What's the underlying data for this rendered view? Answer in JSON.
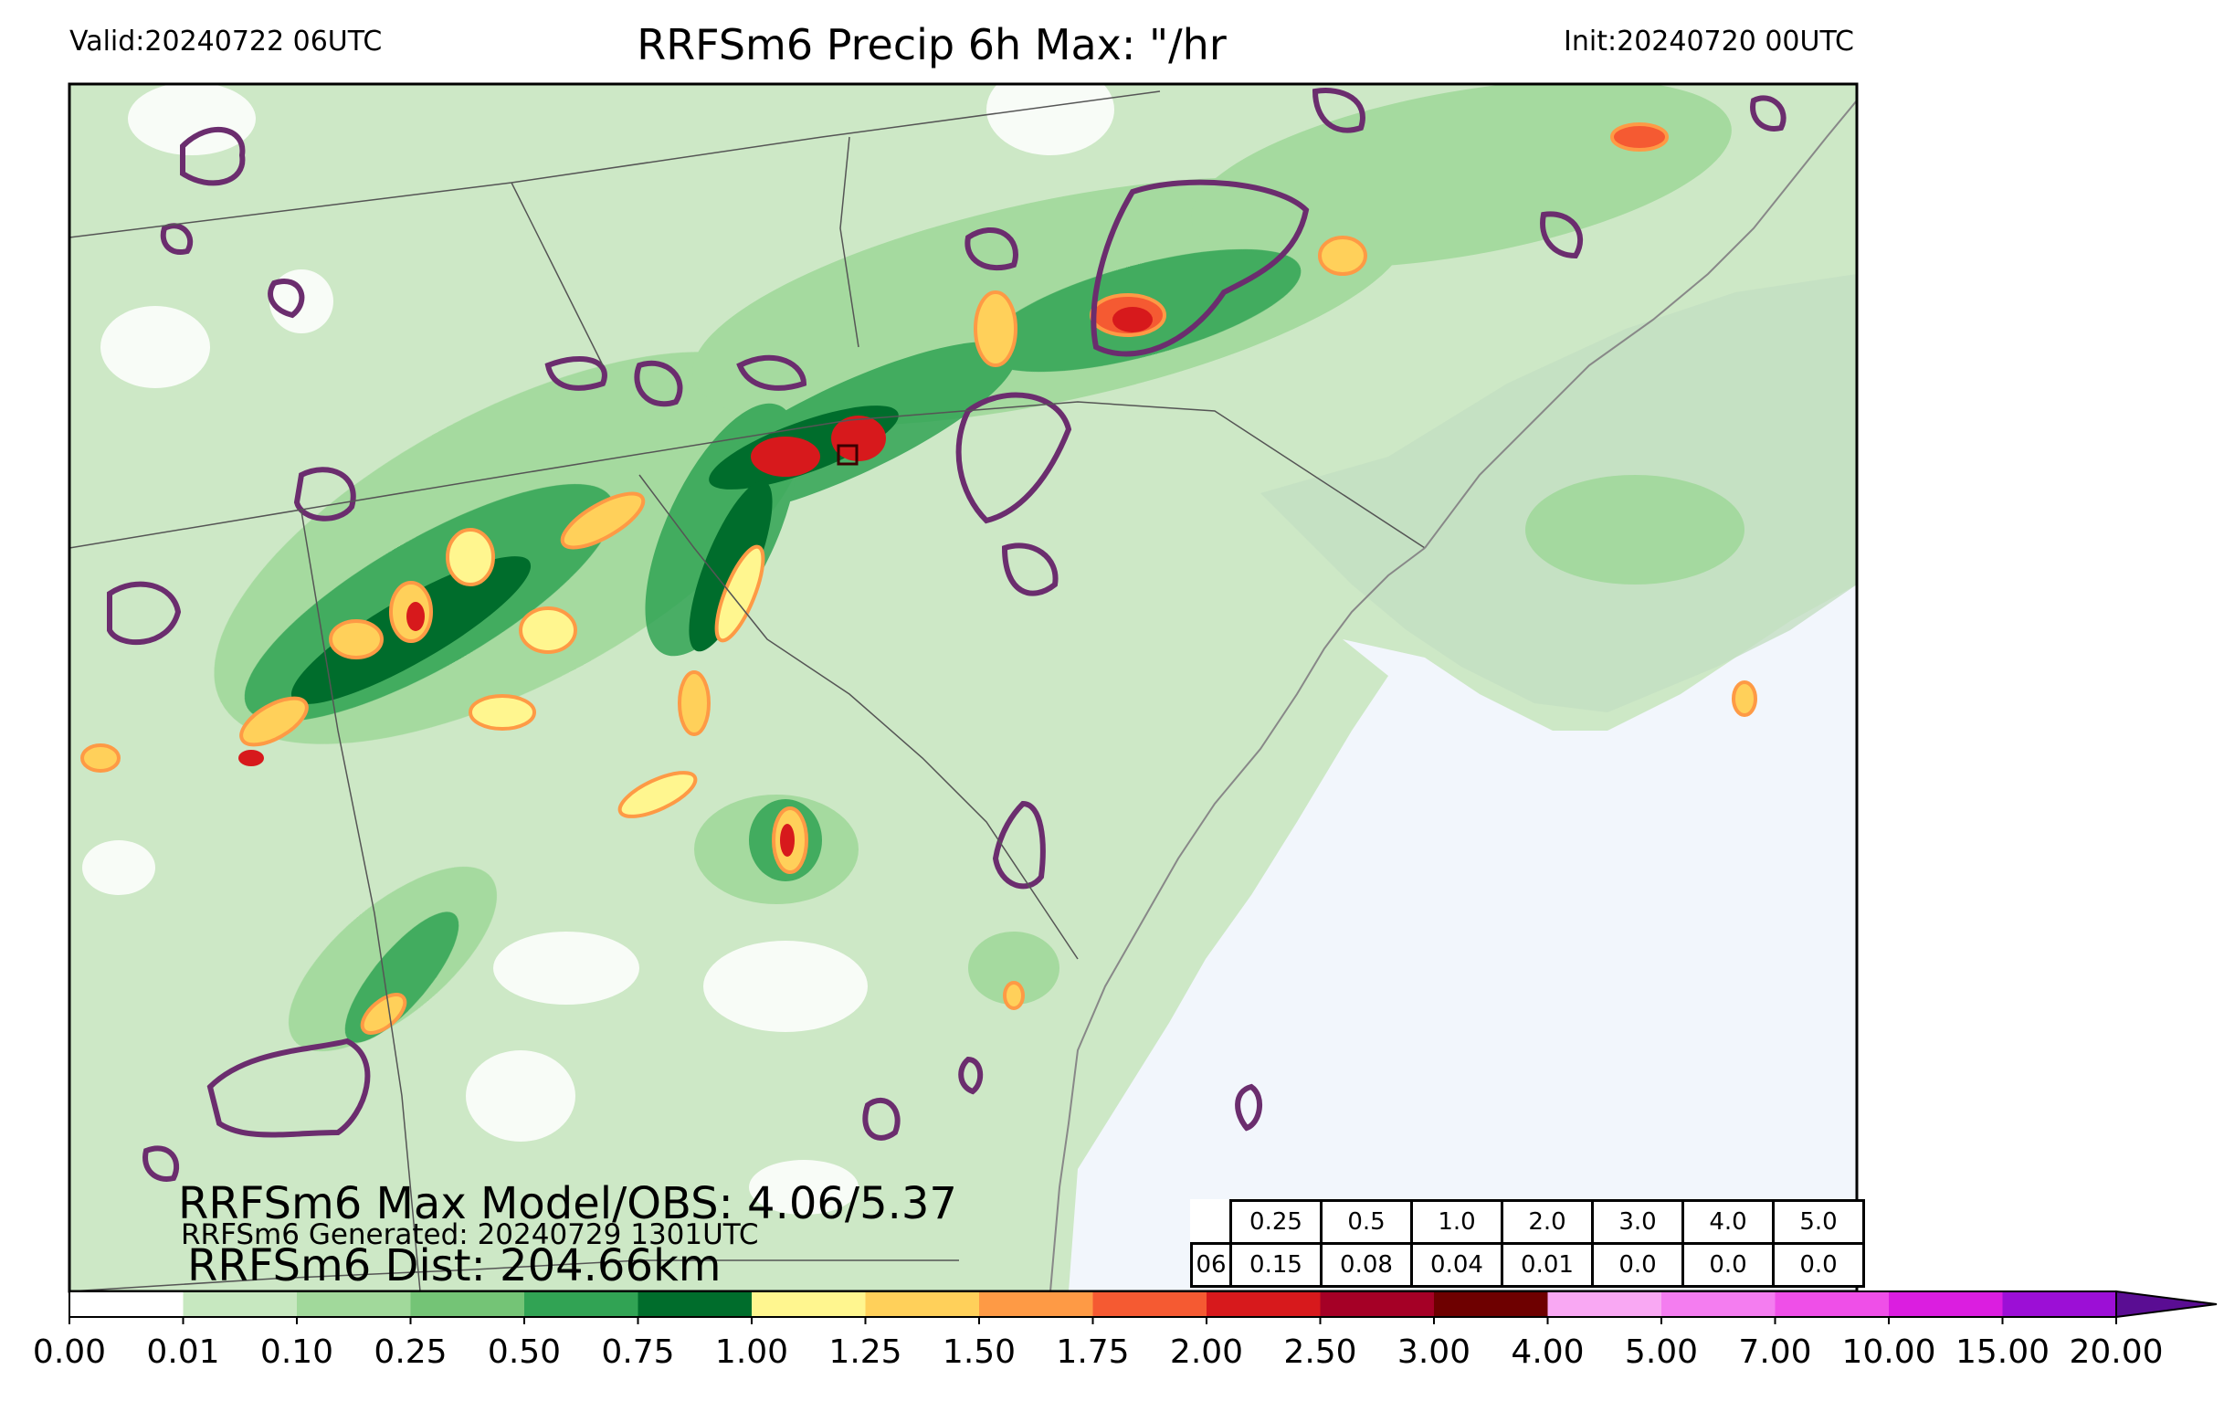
{
  "header": {
    "valid": "Valid:20240722 06UTC",
    "title": "RRFSm6 Precip 6h Max: \"/hr",
    "init": "Init:20240720 00UTC"
  },
  "annotations": {
    "max_model_obs": "RRFSm6 Max Model/OBS: 4.06/5.37",
    "generated": "RRFSm6 Generated: 20240729 1301UTC",
    "dist": "RRFSm6 Dist: 204.66km"
  },
  "stats_table": {
    "thresholds": [
      "0.25",
      "0.5",
      "1.0",
      "2.0",
      "3.0",
      "4.0",
      "5.0"
    ],
    "row_label": "06",
    "values": [
      "0.15",
      "0.08",
      "0.04",
      "0.01",
      "0.0",
      "0.0",
      "0.0"
    ]
  },
  "colorbar": {
    "ticks": [
      "0.00",
      "0.01",
      "0.10",
      "0.25",
      "0.50",
      "0.75",
      "1.00",
      "1.25",
      "1.50",
      "1.75",
      "2.00",
      "2.50",
      "3.00",
      "4.00",
      "5.00",
      "7.00",
      "10.00",
      "15.00",
      "20.00"
    ],
    "colors": [
      "#ffffff",
      "#c7e8c0",
      "#a1d99b",
      "#74c476",
      "#31a354",
      "#006d2c",
      "#fff68f",
      "#ffd05a",
      "#fe9a45",
      "#f55a32",
      "#d7191c",
      "#a50026",
      "#6e0000",
      "#f9a8f3",
      "#f47df0",
      "#ef4fe8",
      "#db1ee0",
      "#9c0fd6"
    ],
    "extend_color": "#5a0d93"
  },
  "colors": {
    "ocean": "#f2f6fc",
    "land_base": "#cde8c6",
    "contour": "#6b2d6e"
  }
}
